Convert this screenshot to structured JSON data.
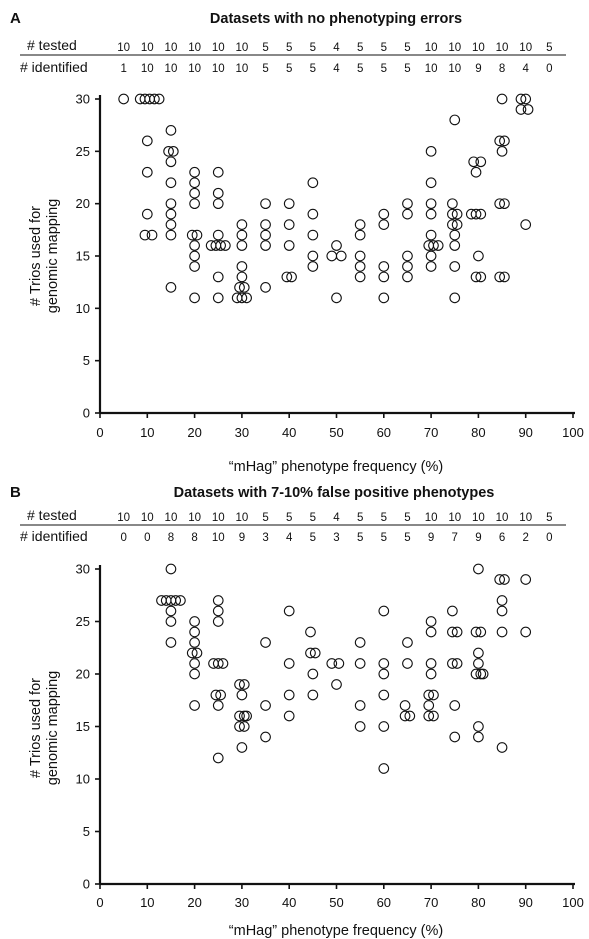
{
  "chart_data": [
    {
      "panel": "A",
      "type": "scatter",
      "title": "Datasets with no phenotyping errors",
      "xlabel": "“mHag” phenotype frequency (%)",
      "ylabel_line1": "# Trios used for",
      "ylabel_line2": "genomic mapping",
      "xlim": [
        0,
        100
      ],
      "ylim": [
        0,
        30
      ],
      "xticks": [
        0,
        10,
        20,
        30,
        40,
        50,
        60,
        70,
        80,
        90,
        100
      ],
      "yticks": [
        0,
        5,
        10,
        15,
        20,
        25,
        30
      ],
      "table": {
        "row1_label": "# tested",
        "row2_label": "# identified",
        "frequencies": [
          5,
          10,
          15,
          20,
          25,
          30,
          35,
          40,
          45,
          50,
          55,
          60,
          65,
          70,
          75,
          80,
          85,
          90,
          95
        ],
        "tested": [
          10,
          10,
          10,
          10,
          10,
          10,
          5,
          5,
          5,
          4,
          5,
          5,
          5,
          10,
          10,
          10,
          10,
          10,
          5
        ],
        "identified": [
          1,
          10,
          10,
          10,
          10,
          10,
          5,
          5,
          5,
          4,
          5,
          5,
          5,
          10,
          10,
          9,
          8,
          4,
          0
        ]
      },
      "points": [
        [
          5,
          30
        ],
        [
          8.5,
          30
        ],
        [
          9.5,
          30
        ],
        [
          10.5,
          30
        ],
        [
          11.5,
          30
        ],
        [
          12.5,
          30
        ],
        [
          10,
          26
        ],
        [
          10,
          23
        ],
        [
          10,
          19
        ],
        [
          9.5,
          17
        ],
        [
          11,
          17
        ],
        [
          14.5,
          25
        ],
        [
          15.5,
          25
        ],
        [
          15,
          27
        ],
        [
          15,
          24
        ],
        [
          15,
          22
        ],
        [
          15,
          20
        ],
        [
          15,
          19
        ],
        [
          15,
          18
        ],
        [
          15,
          17
        ],
        [
          15,
          12
        ],
        [
          20,
          23
        ],
        [
          20,
          22
        ],
        [
          20,
          21
        ],
        [
          20,
          20
        ],
        [
          19.5,
          17
        ],
        [
          20.5,
          17
        ],
        [
          20,
          16
        ],
        [
          20,
          15
        ],
        [
          20,
          14
        ],
        [
          20,
          11
        ],
        [
          25,
          23
        ],
        [
          25,
          21
        ],
        [
          25,
          20
        ],
        [
          25,
          17
        ],
        [
          23.5,
          16
        ],
        [
          24.5,
          16
        ],
        [
          25.5,
          16
        ],
        [
          26.5,
          16
        ],
        [
          25,
          13
        ],
        [
          25,
          11
        ],
        [
          30,
          18
        ],
        [
          30,
          17
        ],
        [
          30,
          16
        ],
        [
          30,
          14
        ],
        [
          30,
          13
        ],
        [
          29.5,
          12
        ],
        [
          30.5,
          12
        ],
        [
          29,
          11
        ],
        [
          30,
          11
        ],
        [
          31,
          11
        ],
        [
          35,
          20
        ],
        [
          35,
          18
        ],
        [
          35,
          17
        ],
        [
          35,
          16
        ],
        [
          35,
          12
        ],
        [
          40,
          20
        ],
        [
          40,
          18
        ],
        [
          40,
          16
        ],
        [
          39.5,
          13
        ],
        [
          40.5,
          13
        ],
        [
          45,
          22
        ],
        [
          45,
          19
        ],
        [
          45,
          17
        ],
        [
          45,
          15
        ],
        [
          45,
          14
        ],
        [
          49,
          15
        ],
        [
          50,
          16
        ],
        [
          51,
          15
        ],
        [
          50,
          11
        ],
        [
          55,
          18
        ],
        [
          55,
          17
        ],
        [
          55,
          15
        ],
        [
          55,
          14
        ],
        [
          55,
          13
        ],
        [
          60,
          19
        ],
        [
          60,
          18
        ],
        [
          60,
          14
        ],
        [
          60,
          13
        ],
        [
          60,
          11
        ],
        [
          65,
          20
        ],
        [
          65,
          19
        ],
        [
          65,
          15
        ],
        [
          65,
          14
        ],
        [
          65,
          13
        ],
        [
          70,
          25
        ],
        [
          70,
          22
        ],
        [
          70,
          20
        ],
        [
          70,
          19
        ],
        [
          70,
          17
        ],
        [
          69.5,
          16
        ],
        [
          70.5,
          16
        ],
        [
          71.5,
          16
        ],
        [
          70,
          15
        ],
        [
          70,
          14
        ],
        [
          75,
          28
        ],
        [
          74.5,
          20
        ],
        [
          74.5,
          19
        ],
        [
          75.5,
          19
        ],
        [
          74.5,
          18
        ],
        [
          75.5,
          18
        ],
        [
          75,
          17
        ],
        [
          75,
          16
        ],
        [
          75,
          14
        ],
        [
          75,
          11
        ],
        [
          79,
          24
        ],
        [
          80.5,
          24
        ],
        [
          79.5,
          23
        ],
        [
          78.5,
          19
        ],
        [
          79.5,
          19
        ],
        [
          80.5,
          19
        ],
        [
          80,
          15
        ],
        [
          79.5,
          13
        ],
        [
          80.5,
          13
        ],
        [
          85,
          30
        ],
        [
          84.5,
          26
        ],
        [
          85.5,
          26
        ],
        [
          85,
          25
        ],
        [
          84.5,
          20
        ],
        [
          85.5,
          20
        ],
        [
          84.5,
          13
        ],
        [
          85.5,
          13
        ],
        [
          89,
          30
        ],
        [
          90,
          30
        ],
        [
          89,
          29
        ],
        [
          90.5,
          29
        ],
        [
          90,
          18
        ]
      ]
    },
    {
      "panel": "B",
      "type": "scatter",
      "title": "Datasets with 7-10% false positive phenotypes",
      "xlabel": "“mHag” phenotype frequency (%)",
      "ylabel_line1": "# Trios used for",
      "ylabel_line2": "genomic mapping",
      "xlim": [
        0,
        100
      ],
      "ylim": [
        0,
        30
      ],
      "xticks": [
        0,
        10,
        20,
        30,
        40,
        50,
        60,
        70,
        80,
        90,
        100
      ],
      "yticks": [
        0,
        5,
        10,
        15,
        20,
        25,
        30
      ],
      "table": {
        "row1_label": "# tested",
        "row2_label": "# identified",
        "frequencies": [
          5,
          10,
          15,
          20,
          25,
          30,
          35,
          40,
          45,
          50,
          55,
          60,
          65,
          70,
          75,
          80,
          85,
          90,
          95
        ],
        "tested": [
          10,
          10,
          10,
          10,
          10,
          10,
          5,
          5,
          5,
          4,
          5,
          5,
          5,
          10,
          10,
          10,
          10,
          10,
          5
        ],
        "identified": [
          0,
          0,
          8,
          8,
          10,
          9,
          3,
          4,
          5,
          3,
          5,
          5,
          5,
          9,
          7,
          9,
          6,
          2,
          0
        ]
      },
      "points": [
        [
          15,
          30
        ],
        [
          13,
          27
        ],
        [
          14,
          27
        ],
        [
          15,
          27
        ],
        [
          16,
          27
        ],
        [
          17,
          27
        ],
        [
          15,
          26
        ],
        [
          15,
          25
        ],
        [
          15,
          23
        ],
        [
          20,
          25
        ],
        [
          20,
          24
        ],
        [
          20,
          23
        ],
        [
          19.5,
          22
        ],
        [
          20.5,
          22
        ],
        [
          20,
          21
        ],
        [
          20,
          20
        ],
        [
          20,
          17
        ],
        [
          25,
          27
        ],
        [
          25,
          26
        ],
        [
          25,
          25
        ],
        [
          24,
          21
        ],
        [
          25,
          21
        ],
        [
          26,
          21
        ],
        [
          24.5,
          18
        ],
        [
          25.5,
          18
        ],
        [
          25,
          17
        ],
        [
          25,
          12
        ],
        [
          29.5,
          19
        ],
        [
          30.5,
          19
        ],
        [
          30,
          18
        ],
        [
          29.5,
          16
        ],
        [
          30.5,
          16
        ],
        [
          31,
          16
        ],
        [
          29.5,
          15
        ],
        [
          30.5,
          15
        ],
        [
          30,
          13
        ],
        [
          35,
          23
        ],
        [
          35,
          17
        ],
        [
          35,
          14
        ],
        [
          40,
          26
        ],
        [
          40,
          21
        ],
        [
          40,
          18
        ],
        [
          40,
          16
        ],
        [
          44.5,
          24
        ],
        [
          44.5,
          22
        ],
        [
          45.5,
          22
        ],
        [
          45,
          20
        ],
        [
          45,
          18
        ],
        [
          49,
          21
        ],
        [
          50.5,
          21
        ],
        [
          50,
          19
        ],
        [
          55,
          23
        ],
        [
          55,
          21
        ],
        [
          55,
          17
        ],
        [
          55,
          15
        ],
        [
          60,
          26
        ],
        [
          60,
          21
        ],
        [
          60,
          20
        ],
        [
          60,
          18
        ],
        [
          60,
          15
        ],
        [
          60,
          11
        ],
        [
          65,
          23
        ],
        [
          65,
          21
        ],
        [
          64.5,
          17
        ],
        [
          64.5,
          16
        ],
        [
          65.5,
          16
        ],
        [
          70,
          25
        ],
        [
          70,
          24
        ],
        [
          70,
          21
        ],
        [
          70,
          20
        ],
        [
          69.5,
          18
        ],
        [
          70.5,
          18
        ],
        [
          69.5,
          17
        ],
        [
          69.5,
          16
        ],
        [
          70.5,
          16
        ],
        [
          74.5,
          26
        ],
        [
          74.5,
          24
        ],
        [
          75.5,
          24
        ],
        [
          74.5,
          21
        ],
        [
          75.5,
          21
        ],
        [
          75,
          17
        ],
        [
          75,
          14
        ],
        [
          80,
          30
        ],
        [
          79.5,
          24
        ],
        [
          80.5,
          24
        ],
        [
          80,
          22
        ],
        [
          80,
          21
        ],
        [
          79.5,
          20
        ],
        [
          80.5,
          20
        ],
        [
          81,
          20
        ],
        [
          80,
          15
        ],
        [
          80,
          14
        ],
        [
          84.5,
          29
        ],
        [
          85.5,
          29
        ],
        [
          85,
          27
        ],
        [
          85,
          26
        ],
        [
          85,
          24
        ],
        [
          85,
          13
        ],
        [
          90,
          29
        ],
        [
          90,
          24
        ]
      ]
    }
  ]
}
